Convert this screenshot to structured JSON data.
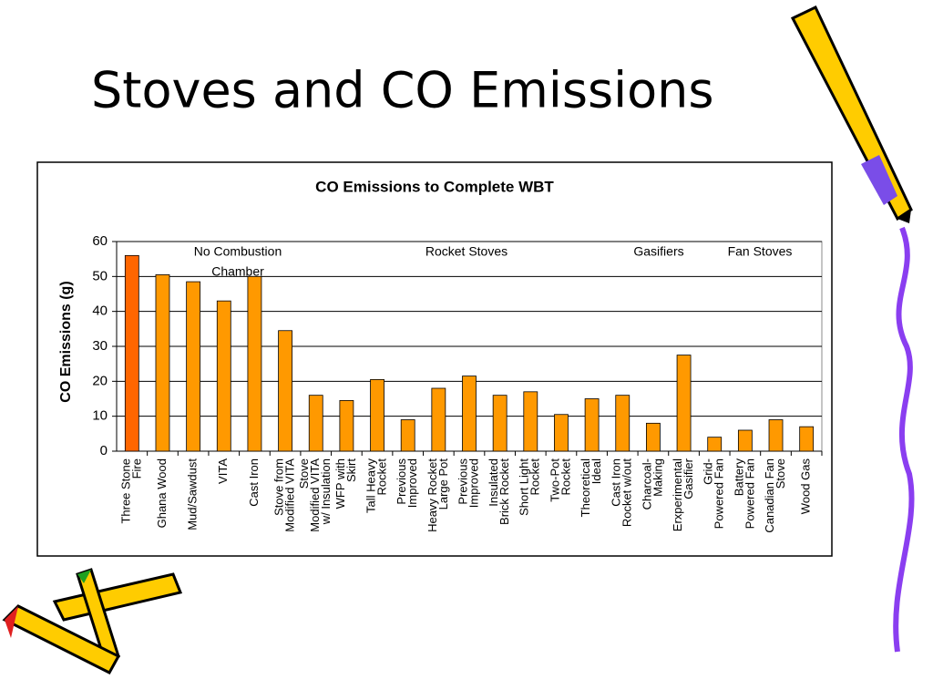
{
  "slide_title": "Stoves and CO Emissions",
  "chart_data": {
    "type": "bar",
    "title": "CO Emissions to Complete WBT",
    "y_label": "CO Emissions (g)",
    "categories": [
      [
        "Three Stone",
        "Fire"
      ],
      [
        "Ghana Wood"
      ],
      [
        "Mud/Sawdust"
      ],
      [
        "VITA"
      ],
      [
        "Cast Iron"
      ],
      [
        "Stove from",
        "Modified VITA"
      ],
      [
        "Stove",
        "Modified VITA",
        "w/ Insulation"
      ],
      [
        "WFP with",
        "Skirt"
      ],
      [
        "Tall Heavy",
        "Rocket"
      ],
      [
        "Previous",
        "Improved"
      ],
      [
        "Heavy Rocket",
        "Large Pot"
      ],
      [
        "Previous",
        "Improved"
      ],
      [
        "Insulated",
        "Brick Rocket"
      ],
      [
        "Short Light",
        "Rocket"
      ],
      [
        "Two-Pot",
        "Rocket"
      ],
      [
        "Theoretical",
        "Ideal"
      ],
      [
        "Cast Iron",
        "Rocket w/out"
      ],
      [
        "Charcoal-",
        "Making"
      ],
      [
        "Erxperimental",
        "Gasifier"
      ],
      [
        "Grid-",
        "Powered Fan"
      ],
      [
        "Battery",
        "Powered Fan"
      ],
      [
        "Canadian Fan",
        "Stove"
      ],
      [
        "Wood Gas"
      ]
    ],
    "values": [
      56,
      50.5,
      48.5,
      43,
      50,
      34.5,
      16,
      14.5,
      20.5,
      9,
      18,
      21.5,
      16,
      17,
      10.5,
      15,
      16,
      8,
      27.5,
      4,
      6,
      9,
      7
    ],
    "colors": [
      "#ff6600",
      "#ff9900",
      "#ff9900",
      "#ff9900",
      "#ff9900",
      "#ff9900",
      "#ff9900",
      "#ff9900",
      "#ff9900",
      "#ff9900",
      "#ff9900",
      "#ff9900",
      "#ff9900",
      "#ff9900",
      "#ff9900",
      "#ff9900",
      "#ff9900",
      "#ff9900",
      "#ff9900",
      "#ff9900",
      "#ff9900",
      "#ff9900",
      "#ff9900"
    ],
    "ylim": [
      0,
      60
    ],
    "yticks": [
      0,
      10,
      20,
      30,
      40,
      50,
      60
    ],
    "grid": true,
    "annotations": [
      [
        "No Combustion",
        "Chamber"
      ],
      [
        "Rocket Stoves"
      ],
      [
        "Gasifiers"
      ],
      [
        "Fan Stoves"
      ]
    ]
  }
}
